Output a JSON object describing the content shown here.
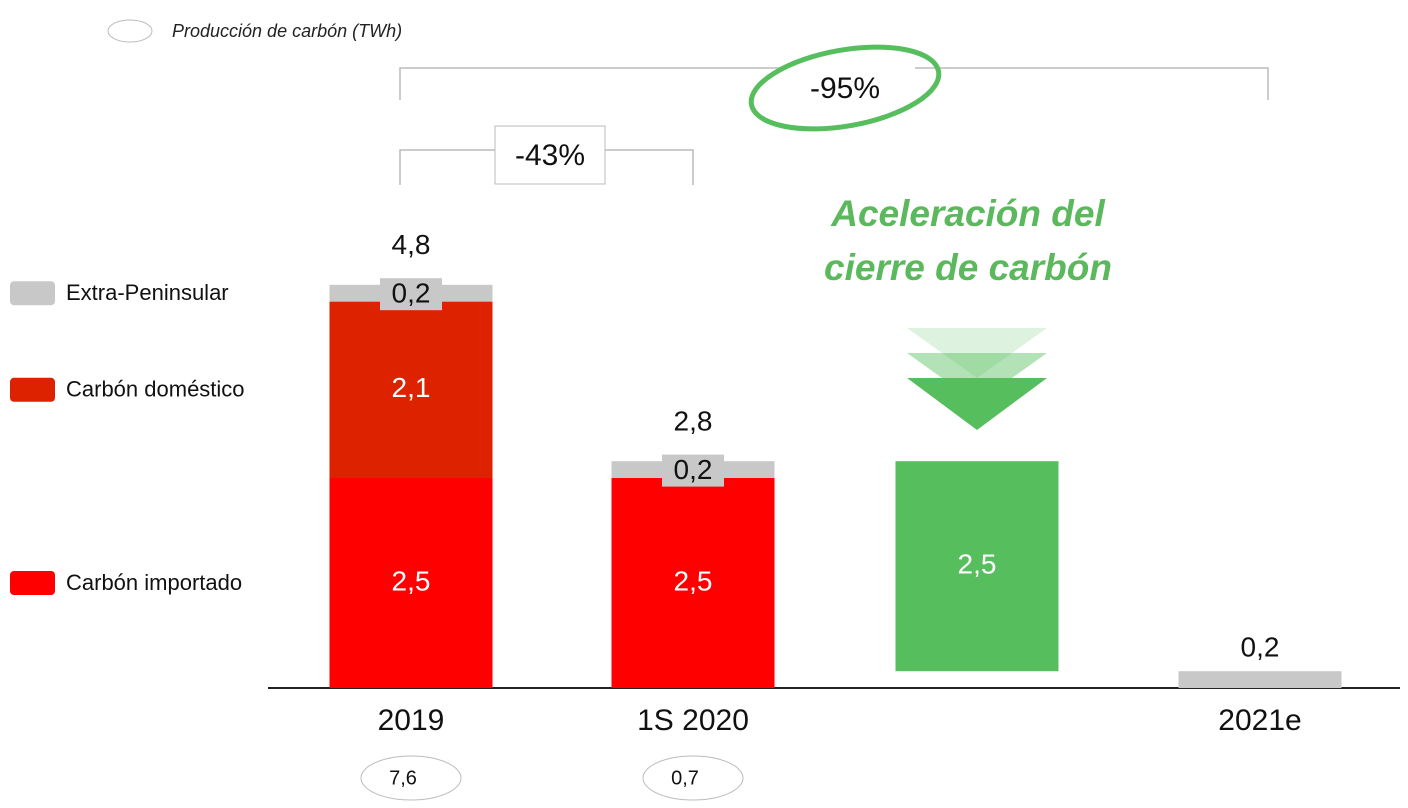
{
  "chart_data": {
    "type": "bar",
    "stacked": true,
    "categories": [
      "2019",
      "1S 2020",
      null,
      "2021e"
    ],
    "series": [
      {
        "name": "Carbón importado",
        "color": "#ff0000",
        "values": [
          2.5,
          2.5,
          null,
          null
        ],
        "value_labels": [
          "2,5",
          "2,5",
          null,
          null
        ]
      },
      {
        "name": "Carbón doméstico",
        "color": "#dd2200",
        "values": [
          2.1,
          null,
          null,
          null
        ],
        "value_labels": [
          "2,1",
          null,
          null,
          null
        ]
      },
      {
        "name": "Extra-Peninsular",
        "color": "#c8c8c8",
        "values": [
          0.2,
          0.2,
          null,
          0.2
        ],
        "value_labels": [
          "0,2",
          "0,2",
          null,
          "0,2"
        ]
      }
    ],
    "totals": {
      "values": [
        4.8,
        2.8,
        null,
        null
      ],
      "value_labels": [
        "4,8",
        "2,8",
        null,
        null
      ]
    },
    "reduction": {
      "value": 2.5,
      "label": "2,5",
      "color": "#57be5e"
    },
    "annotation": [
      "Aceleración del",
      "cierre de carbón"
    ],
    "changes": [
      {
        "label": "-43%"
      },
      {
        "label": "-95%"
      }
    ],
    "bubble_legend": "Producción de carbón (TWh)",
    "bubbles": {
      "values": [
        7.6,
        0.7,
        null,
        null
      ],
      "value_labels": [
        "7,6",
        "0,7",
        null,
        null
      ]
    }
  }
}
